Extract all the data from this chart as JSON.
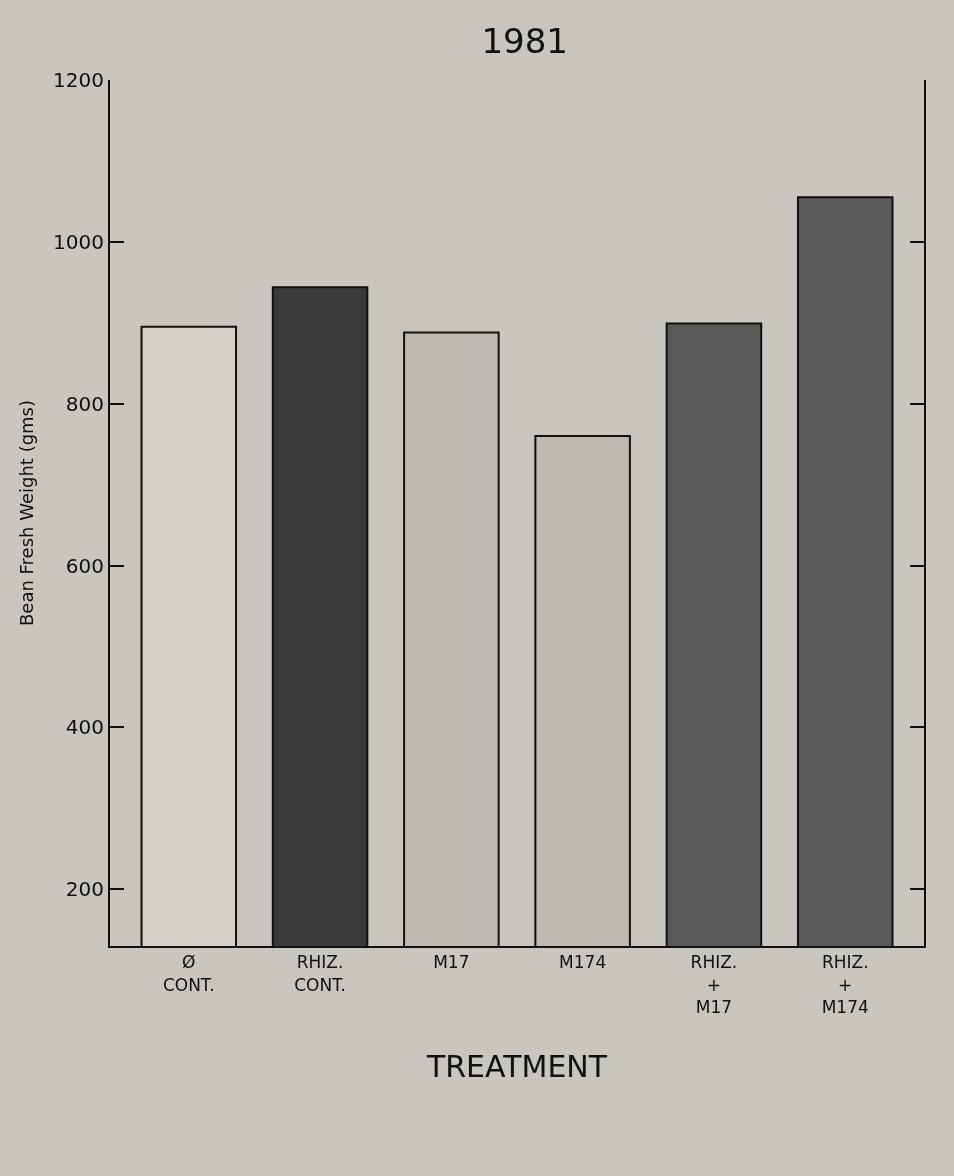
{
  "chart_data": {
    "type": "bar",
    "title": "1981",
    "xlabel": "TREATMENT",
    "ylabel": "Bean Fresh Weight (gms)",
    "categories": [
      "Ø\nCONT.",
      "RHIZ.\nCONT.",
      "M17",
      "M174",
      "RHIZ.\n+\nM17",
      "RHIZ.\n+\nM174"
    ],
    "values": [
      895,
      944,
      888,
      760,
      899,
      1055
    ],
    "colors": [
      "#d2cec8",
      "#3a3a3a",
      "#bdb9b3",
      "#bdb9b3",
      "#5a5a5a",
      "#5a5a5a"
    ],
    "ylim": [
      130,
      1200
    ],
    "yticks": [
      200,
      400,
      600,
      800,
      1000,
      1200
    ],
    "grid": false
  }
}
